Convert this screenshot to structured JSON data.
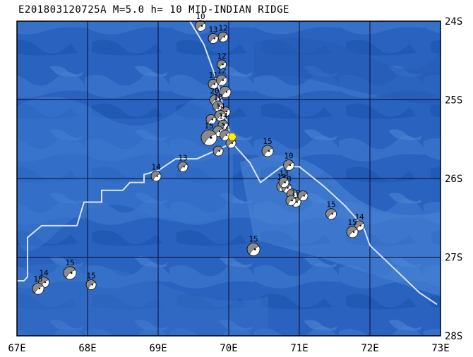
{
  "header": {
    "title": "E201803120725A M=5.0 h= 10 MID-INDIAN RIDGE"
  },
  "map": {
    "lon_range": [
      67,
      73
    ],
    "lat_range": [
      -28,
      -24
    ],
    "lon_ticks": [
      {
        "value": 67,
        "label": "67E"
      },
      {
        "value": 68,
        "label": "68E"
      },
      {
        "value": 69,
        "label": "69E"
      },
      {
        "value": 70,
        "label": "70E"
      },
      {
        "value": 71,
        "label": "71E"
      },
      {
        "value": 72,
        "label": "72E"
      },
      {
        "value": 73,
        "label": "73E"
      }
    ],
    "lat_ticks": [
      {
        "value": -24,
        "label": "24S"
      },
      {
        "value": -25,
        "label": "25S"
      },
      {
        "value": -26,
        "label": "26S"
      },
      {
        "value": -27,
        "label": "27S"
      },
      {
        "value": -28,
        "label": "28S"
      }
    ],
    "grid": true,
    "colors": {
      "ocean_deep": "#1e56b4",
      "ocean_mid": "#2f6bc4",
      "ocean_shallow": "#4a85d6",
      "grid": "#0a0a28",
      "plate_boundary": "#d8e4f4",
      "mechanism_fill": "#8a8a8a",
      "mechanism_white": "#ffffff",
      "epicenter_marker": "#ffee00"
    },
    "epicenter": {
      "lon": 70.05,
      "lat": -25.47,
      "marker": "yellow-hexagon"
    },
    "plate_boundary": [
      [
        69.45,
        -24.0
      ],
      [
        69.65,
        -24.3
      ],
      [
        69.85,
        -24.8
      ],
      [
        69.95,
        -25.2
      ],
      [
        70.05,
        -25.55
      ],
      [
        70.3,
        -25.8
      ],
      [
        70.45,
        -26.05
      ],
      [
        70.75,
        -25.85
      ],
      [
        71.0,
        -25.85
      ],
      [
        71.35,
        -26.1
      ],
      [
        71.65,
        -26.35
      ],
      [
        71.9,
        -26.6
      ],
      [
        72.0,
        -26.85
      ],
      [
        72.35,
        -27.15
      ],
      [
        72.7,
        -27.45
      ],
      [
        72.95,
        -27.6
      ]
    ],
    "plate_boundary_west": [
      [
        70.05,
        -25.55
      ],
      [
        69.8,
        -25.65
      ],
      [
        69.55,
        -25.75
      ],
      [
        69.25,
        -25.75
      ],
      [
        69.0,
        -25.9
      ],
      [
        68.8,
        -25.95
      ],
      [
        68.8,
        -26.05
      ],
      [
        68.6,
        -26.05
      ],
      [
        68.5,
        -26.15
      ],
      [
        68.2,
        -26.15
      ],
      [
        68.2,
        -26.3
      ],
      [
        67.95,
        -26.3
      ],
      [
        67.85,
        -26.6
      ],
      [
        67.35,
        -26.6
      ],
      [
        67.15,
        -26.75
      ],
      [
        67.15,
        -27.25
      ],
      [
        67.1,
        -27.3
      ],
      [
        67.0,
        -27.3
      ]
    ],
    "events": [
      {
        "lon": 69.6,
        "lat": -24.06,
        "label": "10",
        "size": 15
      },
      {
        "lon": 69.78,
        "lat": -24.22,
        "label": "13",
        "size": 14
      },
      {
        "lon": 69.92,
        "lat": -24.2,
        "label": "12",
        "size": 14
      },
      {
        "lon": 69.9,
        "lat": -24.55,
        "label": "12",
        "size": 13
      },
      {
        "lon": 69.78,
        "lat": -24.8,
        "label": "11",
        "size": 14
      },
      {
        "lon": 69.9,
        "lat": -24.75,
        "label": "12",
        "size": 15
      },
      {
        "lon": 69.95,
        "lat": -24.9,
        "label": "",
        "size": 16
      },
      {
        "lon": 69.8,
        "lat": -25.0,
        "label": "20",
        "size": 14
      },
      {
        "lon": 69.85,
        "lat": -25.08,
        "label": "18",
        "size": 15
      },
      {
        "lon": 69.95,
        "lat": -25.15,
        "label": "",
        "size": 14
      },
      {
        "lon": 69.88,
        "lat": -25.2,
        "label": "14",
        "size": 15
      },
      {
        "lon": 69.75,
        "lat": -25.25,
        "label": "",
        "size": 14
      },
      {
        "lon": 69.92,
        "lat": -25.32,
        "label": "14",
        "size": 14
      },
      {
        "lon": 69.85,
        "lat": -25.4,
        "label": "",
        "size": 15
      },
      {
        "lon": 69.95,
        "lat": -25.45,
        "label": "12",
        "size": 15
      },
      {
        "lon": 69.72,
        "lat": -25.48,
        "label": "15",
        "size": 22
      },
      {
        "lon": 69.85,
        "lat": -25.65,
        "label": "",
        "size": 14
      },
      {
        "lon": 70.03,
        "lat": -25.55,
        "label": "",
        "size": 14
      },
      {
        "lon": 70.55,
        "lat": -25.65,
        "label": "15",
        "size": 16
      },
      {
        "lon": 70.85,
        "lat": -25.83,
        "label": "10",
        "size": 15
      },
      {
        "lon": 69.35,
        "lat": -25.85,
        "label": "13",
        "size": 14
      },
      {
        "lon": 68.97,
        "lat": -25.97,
        "label": "14",
        "size": 14
      },
      {
        "lon": 70.75,
        "lat": -26.1,
        "label": "12",
        "size": 14
      },
      {
        "lon": 70.82,
        "lat": -26.12,
        "label": "18",
        "size": 14
      },
      {
        "lon": 70.78,
        "lat": -26.05,
        "label": "13",
        "size": 14
      },
      {
        "lon": 70.9,
        "lat": -26.2,
        "label": "",
        "size": 15
      },
      {
        "lon": 70.95,
        "lat": -26.3,
        "label": "10",
        "size": 14
      },
      {
        "lon": 71.05,
        "lat": -26.22,
        "label": "",
        "size": 14
      },
      {
        "lon": 70.88,
        "lat": -26.28,
        "label": "",
        "size": 14
      },
      {
        "lon": 71.45,
        "lat": -26.45,
        "label": "15",
        "size": 15
      },
      {
        "lon": 71.85,
        "lat": -26.6,
        "label": "14",
        "size": 14
      },
      {
        "lon": 71.75,
        "lat": -26.68,
        "label": "15",
        "size": 16
      },
      {
        "lon": 70.35,
        "lat": -26.9,
        "label": "15",
        "size": 18
      },
      {
        "lon": 67.75,
        "lat": -27.2,
        "label": "15",
        "size": 18
      },
      {
        "lon": 68.05,
        "lat": -27.35,
        "label": "15",
        "size": 14
      },
      {
        "lon": 67.38,
        "lat": -27.32,
        "label": "14",
        "size": 15
      },
      {
        "lon": 67.3,
        "lat": -27.4,
        "label": "15",
        "size": 16
      }
    ]
  }
}
